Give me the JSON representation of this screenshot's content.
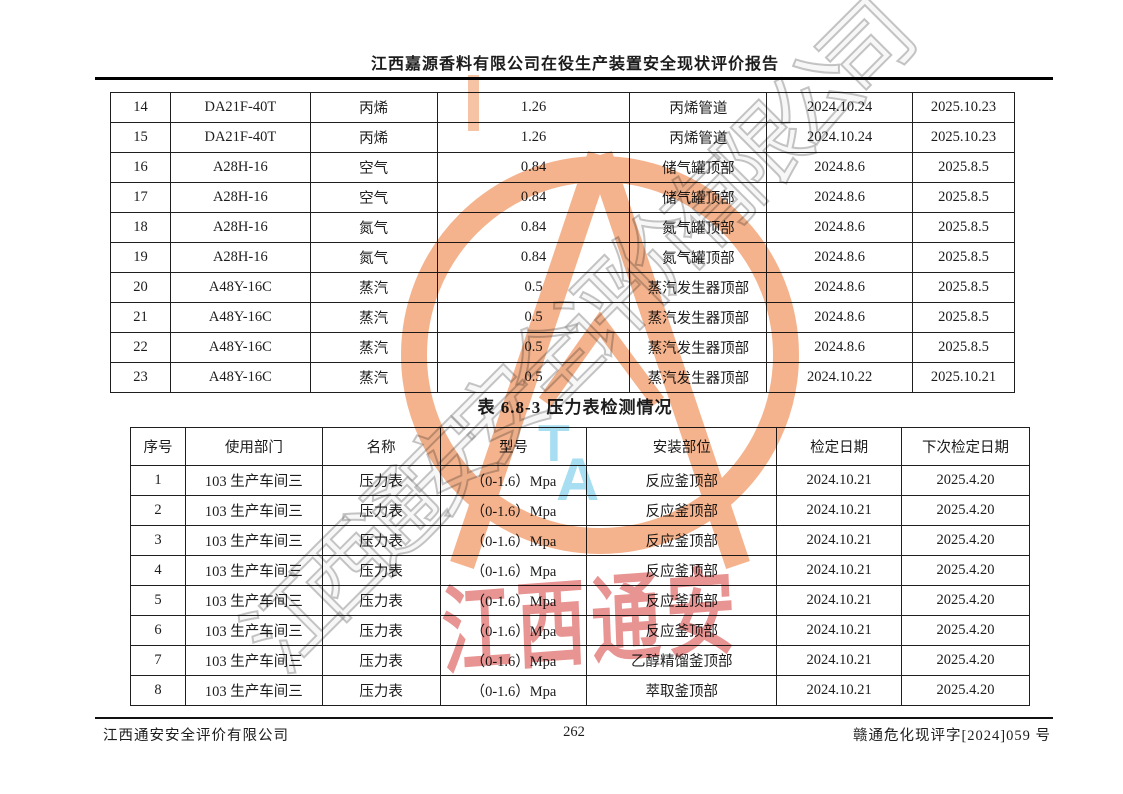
{
  "header": {
    "title": "江西嘉源香料有限公司在役生产装置安全现状评价报告"
  },
  "table1": {
    "rows": [
      [
        "14",
        "DA21F-40T",
        "丙烯",
        "1.26",
        "丙烯管道",
        "2024.10.24",
        "2025.10.23"
      ],
      [
        "15",
        "DA21F-40T",
        "丙烯",
        "1.26",
        "丙烯管道",
        "2024.10.24",
        "2025.10.23"
      ],
      [
        "16",
        "A28H-16",
        "空气",
        "0.84",
        "储气罐顶部",
        "2024.8.6",
        "2025.8.5"
      ],
      [
        "17",
        "A28H-16",
        "空气",
        "0.84",
        "储气罐顶部",
        "2024.8.6",
        "2025.8.5"
      ],
      [
        "18",
        "A28H-16",
        "氮气",
        "0.84",
        "氮气罐顶部",
        "2024.8.6",
        "2025.8.5"
      ],
      [
        "19",
        "A28H-16",
        "氮气",
        "0.84",
        "氮气罐顶部",
        "2024.8.6",
        "2025.8.5"
      ],
      [
        "20",
        "A48Y-16C",
        "蒸汽",
        "0.5",
        "蒸汽发生器顶部",
        "2024.8.6",
        "2025.8.5"
      ],
      [
        "21",
        "A48Y-16C",
        "蒸汽",
        "0.5",
        "蒸汽发生器顶部",
        "2024.8.6",
        "2025.8.5"
      ],
      [
        "22",
        "A48Y-16C",
        "蒸汽",
        "0.5",
        "蒸汽发生器顶部",
        "2024.8.6",
        "2025.8.5"
      ],
      [
        "23",
        "A48Y-16C",
        "蒸汽",
        "0.5",
        "蒸汽发生器顶部",
        "2024.10.22",
        "2025.10.21"
      ]
    ]
  },
  "section_title": "表 6.8-3  压力表检测情况",
  "table2": {
    "headers": [
      "序号",
      "使用部门",
      "名称",
      "型号",
      "安装部位",
      "检定日期",
      "下次检定日期"
    ],
    "rows": [
      [
        "1",
        "103 生产车间三",
        "压力表",
        "（0-1.6）Mpa",
        "反应釜顶部",
        "2024.10.21",
        "2025.4.20"
      ],
      [
        "2",
        "103 生产车间三",
        "压力表",
        "（0-1.6）Mpa",
        "反应釜顶部",
        "2024.10.21",
        "2025.4.20"
      ],
      [
        "3",
        "103 生产车间三",
        "压力表",
        "（0-1.6）Mpa",
        "反应釜顶部",
        "2024.10.21",
        "2025.4.20"
      ],
      [
        "4",
        "103 生产车间三",
        "压力表",
        "（0-1.6）Mpa",
        "反应釜顶部",
        "2024.10.21",
        "2025.4.20"
      ],
      [
        "5",
        "103 生产车间三",
        "压力表",
        "（0-1.6）Mpa",
        "反应釜顶部",
        "2024.10.21",
        "2025.4.20"
      ],
      [
        "6",
        "103 生产车间三",
        "压力表",
        "（0-1.6）Mpa",
        "反应釜顶部",
        "2024.10.21",
        "2025.4.20"
      ],
      [
        "7",
        "103 生产车间三",
        "压力表",
        "（0-1.6）Mpa",
        "乙醇精馏釜顶部",
        "2024.10.21",
        "2025.4.20"
      ],
      [
        "8",
        "103 生产车间三",
        "压力表",
        "（0-1.6）Mpa",
        "萃取釜顶部",
        "2024.10.21",
        "2025.4.20"
      ]
    ]
  },
  "footer": {
    "left": "江西通安安全评价有限公司",
    "page_number": "262",
    "right": "赣通危化现评字[2024]059 号"
  },
  "watermark": {
    "company_text": "江西通安安全评价有限公司",
    "stamp_text": "江西通安",
    "letter_t": "T",
    "letter_a": "A",
    "colors": {
      "logo_orange": "#f3a679",
      "logo_blue": "#8ad3ec",
      "stamp_red": "#cf2a26",
      "text_grey": "#8c8c8c"
    }
  }
}
